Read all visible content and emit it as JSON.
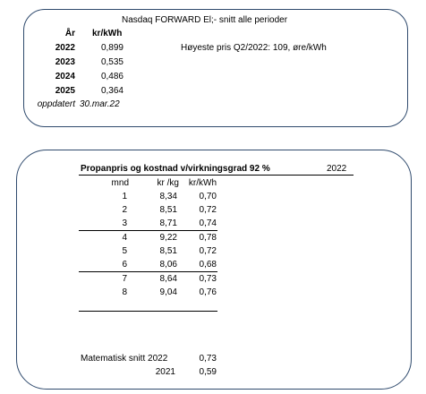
{
  "box1": {
    "title": "Nasdaq FORWARD El;- snitt alle perioder",
    "col_year": "År",
    "col_unit": "kr/kWh",
    "rows": [
      {
        "year": "2022",
        "value": "0,899"
      },
      {
        "year": "2023",
        "value": "0,535"
      },
      {
        "year": "2024",
        "value": "0,486"
      },
      {
        "year": "2025",
        "value": "0,364"
      }
    ],
    "updated_label": "oppdatert",
    "updated_date": "30.mar.22",
    "note": "Høyeste pris Q2/2022: 109, øre/kWh"
  },
  "box2": {
    "title": "Propanpris og kostnad v/virkningsgrad 92 %",
    "year": "2022",
    "col_month": "mnd",
    "col_krkg": "kr /kg",
    "col_krkwh": "kr/kWh",
    "rows": [
      {
        "m": "1",
        "kg": "8,34",
        "kwh": "0,70"
      },
      {
        "m": "2",
        "kg": "8,51",
        "kwh": "0,72"
      },
      {
        "m": "3",
        "kg": "8,71",
        "kwh": "0,74"
      },
      {
        "m": "4",
        "kg": "9,22",
        "kwh": "0,78"
      },
      {
        "m": "5",
        "kg": "8,51",
        "kwh": "0,72"
      },
      {
        "m": "6",
        "kg": "8,06",
        "kwh": "0,68"
      },
      {
        "m": "7",
        "kg": "8,64",
        "kwh": "0,73"
      },
      {
        "m": "8",
        "kg": "9,04",
        "kwh": "0,76"
      }
    ],
    "avg_label": "Matematisk snitt 2022",
    "avg_value": "0,73",
    "prev_year": "2021",
    "prev_value": "0,59"
  }
}
